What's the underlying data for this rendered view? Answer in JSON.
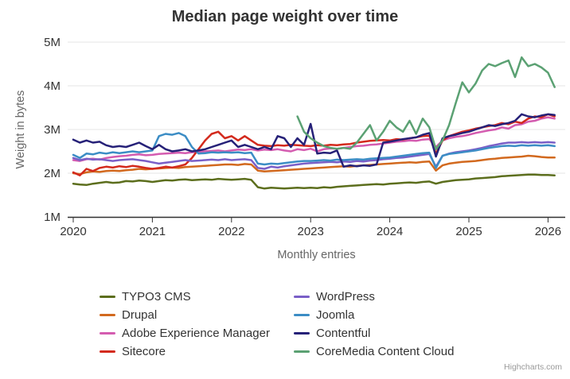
{
  "credit": "Highcharts.com",
  "chart_data": {
    "type": "line",
    "title": "Median page weight over time",
    "xlabel": "Monthly entries",
    "ylabel": "Weight in bytes",
    "x_tick_labels": [
      "2020",
      "2021",
      "2022",
      "2023",
      "2024",
      "2025",
      "2026"
    ],
    "y_tick_labels": [
      "1M",
      "2M",
      "3M",
      "4M",
      "5M"
    ],
    "ylim_bytes": [
      1000000,
      5000000
    ],
    "x_start": "2020-01",
    "x_interval": "month",
    "grid": "horizontal",
    "legend_position": "bottom",
    "values_unit": "millions of bytes",
    "series": [
      {
        "name": "TYPO3 CMS",
        "color": "#5c6e1d",
        "values": [
          1.76,
          1.74,
          1.73,
          1.76,
          1.78,
          1.8,
          1.78,
          1.79,
          1.82,
          1.81,
          1.83,
          1.82,
          1.8,
          1.82,
          1.84,
          1.83,
          1.85,
          1.86,
          1.84,
          1.85,
          1.86,
          1.85,
          1.87,
          1.86,
          1.85,
          1.86,
          1.87,
          1.85,
          1.68,
          1.65,
          1.67,
          1.66,
          1.65,
          1.66,
          1.67,
          1.66,
          1.67,
          1.66,
          1.68,
          1.67,
          1.69,
          1.7,
          1.71,
          1.72,
          1.73,
          1.74,
          1.75,
          1.74,
          1.76,
          1.77,
          1.78,
          1.79,
          1.78,
          1.8,
          1.81,
          1.76,
          1.8,
          1.82,
          1.84,
          1.85,
          1.86,
          1.88,
          1.89,
          1.9,
          1.91,
          1.93,
          1.94,
          1.95,
          1.96,
          1.97,
          1.97,
          1.96,
          1.96,
          1.95
        ]
      },
      {
        "name": "Drupal",
        "color": "#d2691e",
        "values": [
          2.0,
          1.98,
          2.02,
          2.04,
          2.03,
          2.05,
          2.06,
          2.05,
          2.07,
          2.08,
          2.1,
          2.09,
          2.1,
          2.11,
          2.12,
          2.13,
          2.12,
          2.14,
          2.15,
          2.16,
          2.17,
          2.18,
          2.19,
          2.2,
          2.2,
          2.19,
          2.21,
          2.2,
          2.06,
          2.04,
          2.05,
          2.06,
          2.07,
          2.08,
          2.09,
          2.1,
          2.11,
          2.12,
          2.13,
          2.14,
          2.15,
          2.16,
          2.15,
          2.17,
          2.18,
          2.19,
          2.2,
          2.21,
          2.22,
          2.23,
          2.24,
          2.25,
          2.24,
          2.26,
          2.27,
          2.06,
          2.18,
          2.22,
          2.24,
          2.26,
          2.27,
          2.28,
          2.3,
          2.32,
          2.33,
          2.35,
          2.36,
          2.37,
          2.38,
          2.4,
          2.39,
          2.37,
          2.36,
          2.36
        ]
      },
      {
        "name": "Adobe Experience Manager",
        "color": "#d45cb0",
        "values": [
          2.3,
          2.28,
          2.32,
          2.33,
          2.31,
          2.35,
          2.37,
          2.39,
          2.4,
          2.42,
          2.43,
          2.41,
          2.42,
          2.44,
          2.45,
          2.46,
          2.47,
          2.46,
          2.48,
          2.49,
          2.5,
          2.51,
          2.52,
          2.5,
          2.52,
          2.54,
          2.53,
          2.55,
          2.52,
          2.54,
          2.53,
          2.55,
          2.52,
          2.5,
          2.55,
          2.53,
          2.56,
          2.5,
          2.55,
          2.57,
          2.56,
          2.58,
          2.6,
          2.62,
          2.63,
          2.65,
          2.66,
          2.68,
          2.7,
          2.72,
          2.73,
          2.75,
          2.74,
          2.77,
          2.78,
          2.6,
          2.75,
          2.8,
          2.83,
          2.85,
          2.88,
          2.92,
          2.95,
          2.98,
          3.0,
          3.05,
          3.02,
          3.1,
          3.12,
          3.18,
          3.2,
          3.25,
          3.28,
          3.25
        ]
      },
      {
        "name": "Sitecore",
        "color": "#d32a1d",
        "values": [
          2.02,
          1.95,
          2.1,
          2.05,
          2.12,
          2.15,
          2.13,
          2.16,
          2.14,
          2.17,
          2.15,
          2.12,
          2.1,
          2.12,
          2.15,
          2.13,
          2.16,
          2.2,
          2.35,
          2.55,
          2.75,
          2.9,
          2.95,
          2.8,
          2.85,
          2.75,
          2.85,
          2.75,
          2.65,
          2.63,
          2.62,
          2.64,
          2.63,
          2.65,
          2.64,
          2.63,
          2.62,
          2.64,
          2.63,
          2.65,
          2.64,
          2.66,
          2.67,
          2.7,
          2.72,
          2.74,
          2.75,
          2.76,
          2.75,
          2.78,
          2.77,
          2.8,
          2.82,
          2.85,
          2.86,
          2.45,
          2.75,
          2.85,
          2.9,
          2.95,
          2.98,
          3.02,
          3.05,
          3.08,
          3.1,
          3.15,
          3.12,
          3.18,
          3.15,
          3.25,
          3.3,
          3.28,
          3.35,
          3.3
        ]
      },
      {
        "name": "WordPress",
        "color": "#7a5fc7",
        "values": [
          2.35,
          2.3,
          2.33,
          2.31,
          2.32,
          2.3,
          2.28,
          2.3,
          2.31,
          2.32,
          2.3,
          2.28,
          2.25,
          2.22,
          2.24,
          2.26,
          2.28,
          2.3,
          2.28,
          2.29,
          2.3,
          2.31,
          2.3,
          2.32,
          2.3,
          2.31,
          2.32,
          2.3,
          2.12,
          2.1,
          2.15,
          2.13,
          2.16,
          2.18,
          2.2,
          2.22,
          2.23,
          2.24,
          2.25,
          2.26,
          2.25,
          2.27,
          2.26,
          2.28,
          2.27,
          2.29,
          2.3,
          2.32,
          2.33,
          2.35,
          2.36,
          2.38,
          2.4,
          2.42,
          2.44,
          2.15,
          2.4,
          2.45,
          2.48,
          2.5,
          2.52,
          2.55,
          2.58,
          2.62,
          2.65,
          2.68,
          2.7,
          2.7,
          2.71,
          2.7,
          2.71,
          2.7,
          2.71,
          2.7
        ]
      },
      {
        "name": "Joomla",
        "color": "#3c8dc5",
        "values": [
          2.42,
          2.35,
          2.45,
          2.43,
          2.47,
          2.45,
          2.48,
          2.46,
          2.48,
          2.5,
          2.48,
          2.5,
          2.52,
          2.85,
          2.9,
          2.88,
          2.92,
          2.85,
          2.6,
          2.45,
          2.46,
          2.48,
          2.47,
          2.48,
          2.47,
          2.48,
          2.46,
          2.47,
          2.22,
          2.2,
          2.22,
          2.21,
          2.23,
          2.25,
          2.27,
          2.28,
          2.28,
          2.29,
          2.3,
          2.29,
          2.31,
          2.3,
          2.31,
          2.32,
          2.31,
          2.33,
          2.34,
          2.35,
          2.36,
          2.38,
          2.4,
          2.42,
          2.44,
          2.46,
          2.47,
          2.12,
          2.4,
          2.44,
          2.46,
          2.48,
          2.5,
          2.52,
          2.55,
          2.58,
          2.6,
          2.62,
          2.63,
          2.62,
          2.64,
          2.63,
          2.64,
          2.63,
          2.64,
          2.62
        ]
      },
      {
        "name": "Contentful",
        "color": "#262178",
        "values": [
          2.77,
          2.7,
          2.75,
          2.7,
          2.72,
          2.64,
          2.6,
          2.62,
          2.6,
          2.65,
          2.7,
          2.62,
          2.55,
          2.65,
          2.55,
          2.5,
          2.52,
          2.55,
          2.5,
          2.52,
          2.55,
          2.6,
          2.65,
          2.7,
          2.75,
          2.6,
          2.65,
          2.6,
          2.55,
          2.6,
          2.55,
          2.85,
          2.8,
          2.6,
          2.8,
          2.65,
          3.13,
          2.45,
          2.47,
          2.46,
          2.52,
          2.15,
          2.18,
          2.16,
          2.18,
          2.17,
          2.2,
          2.7,
          2.72,
          2.75,
          2.78,
          2.8,
          2.82,
          2.88,
          2.92,
          2.38,
          2.8,
          2.85,
          2.88,
          2.92,
          2.95,
          3.0,
          3.05,
          3.1,
          3.08,
          3.12,
          3.15,
          3.2,
          3.35,
          3.3,
          3.28,
          3.32,
          3.35,
          3.33
        ]
      },
      {
        "name": "CoreMedia Content Cloud",
        "color": "#5ba173",
        "values": [
          null,
          null,
          null,
          null,
          null,
          null,
          null,
          null,
          null,
          null,
          null,
          null,
          null,
          null,
          null,
          null,
          null,
          null,
          null,
          null,
          null,
          null,
          null,
          null,
          null,
          null,
          null,
          null,
          null,
          null,
          null,
          null,
          null,
          null,
          3.3,
          2.95,
          2.8,
          2.7,
          2.62,
          2.58,
          2.56,
          2.58,
          2.56,
          2.7,
          2.9,
          3.1,
          2.75,
          2.95,
          3.2,
          3.05,
          2.95,
          3.2,
          2.9,
          3.25,
          3.05,
          2.55,
          2.75,
          3.1,
          3.6,
          4.08,
          3.85,
          4.05,
          4.35,
          4.5,
          4.45,
          4.52,
          4.58,
          4.2,
          4.65,
          4.45,
          4.5,
          4.42,
          4.3,
          3.97
        ]
      }
    ]
  }
}
